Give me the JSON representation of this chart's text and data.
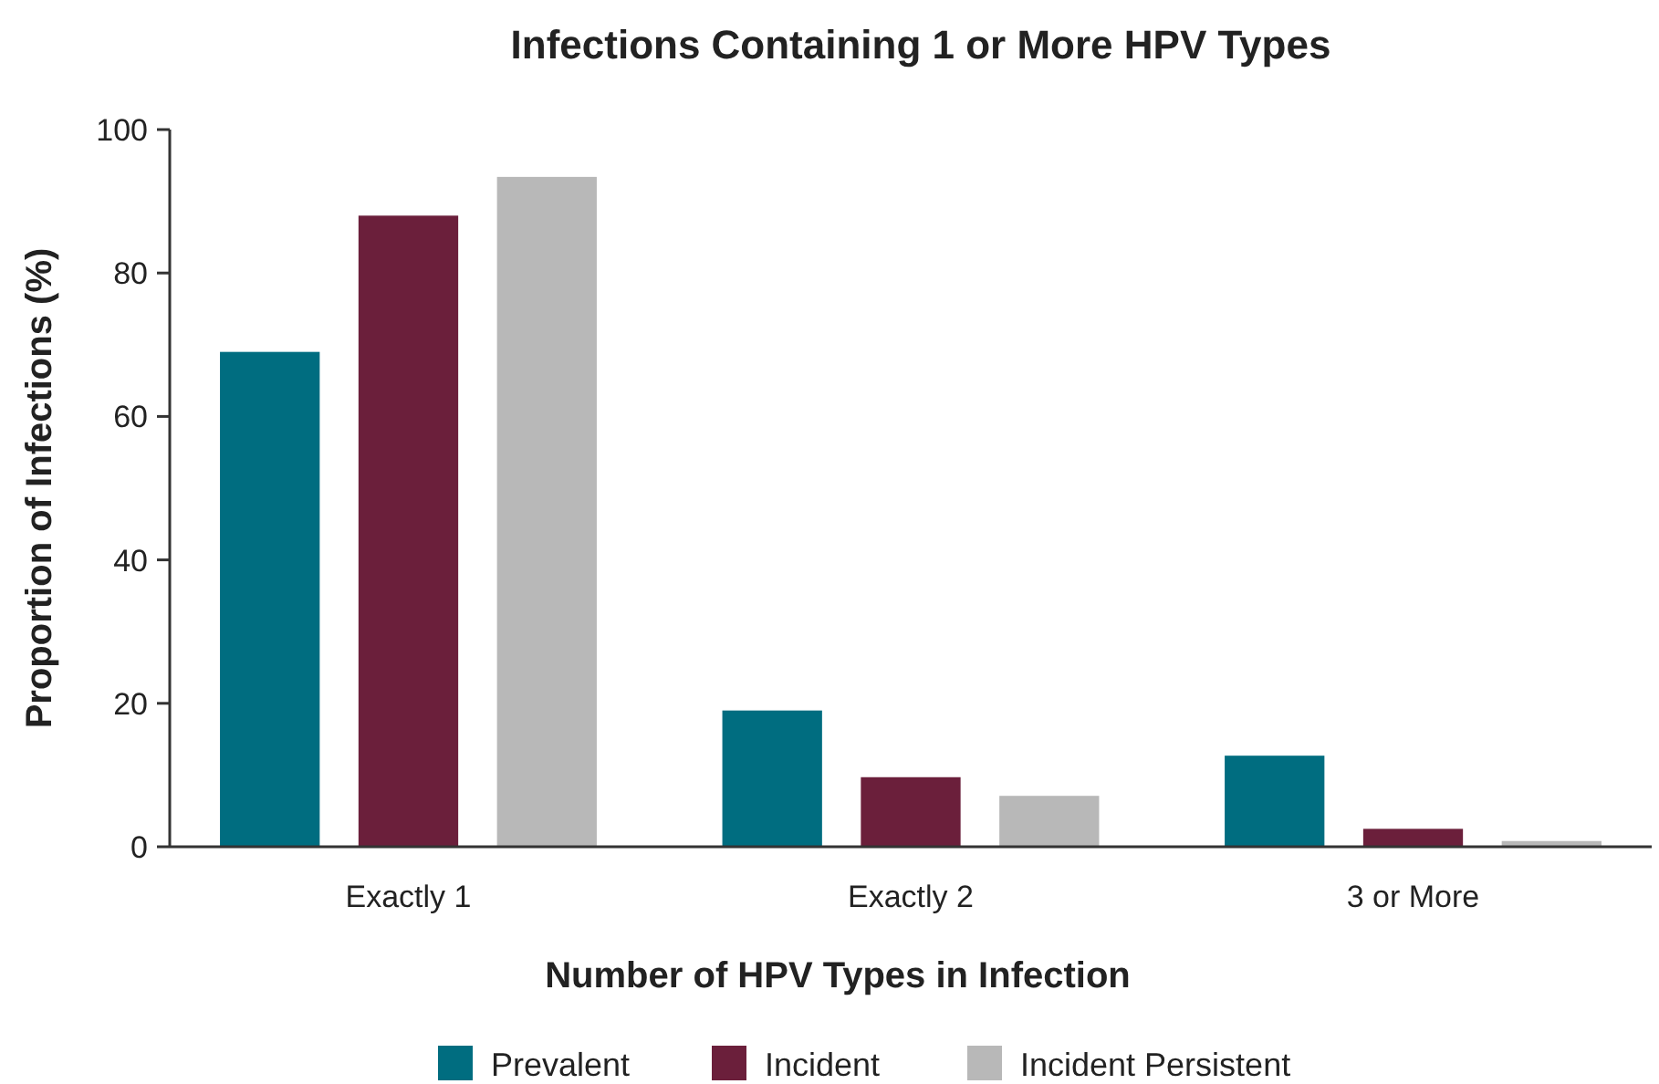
{
  "chart_data": {
    "type": "bar",
    "title": "Infections Containing 1 or More HPV Types",
    "xlabel": "Number of HPV Types in Infection",
    "ylabel": "Proportion of Infections (%)",
    "categories": [
      "Exactly 1",
      "Exactly 2",
      "3 or More"
    ],
    "series": [
      {
        "name": "Prevalent",
        "color": "#006d80",
        "values": [
          69,
          19,
          12.7
        ]
      },
      {
        "name": "Incident",
        "color": "#6b1f3b",
        "values": [
          88,
          9.7,
          2.5
        ]
      },
      {
        "name": "Incident Persistent",
        "color": "#b8b8b8",
        "values": [
          93.4,
          7.1,
          0.8
        ]
      }
    ],
    "ylim": [
      0,
      100
    ],
    "yticks": [
      0,
      20,
      40,
      60,
      80,
      100
    ],
    "grid": false,
    "legend": "bottom"
  }
}
